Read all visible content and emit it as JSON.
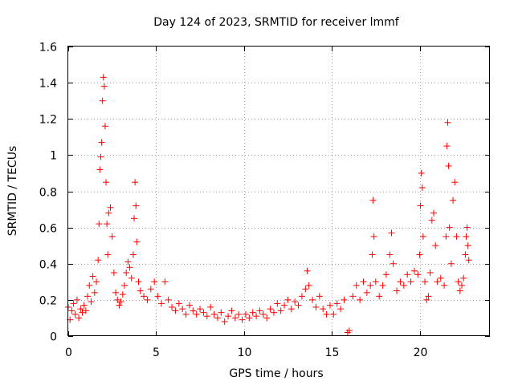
{
  "chart_data": {
    "type": "scatter",
    "title": "Day 124 of 2023, SRMTID for receiver lmmf",
    "xlabel": "GPS time / hours",
    "ylabel": "SRMTID / TECUs",
    "xlim": [
      0,
      24
    ],
    "ylim": [
      0,
      1.6
    ],
    "xticks": [
      0,
      5,
      10,
      15,
      20
    ],
    "xtick_labels": [
      "0",
      "5",
      "10",
      "15",
      "20"
    ],
    "yticks": [
      0,
      0.2,
      0.4,
      0.6,
      0.8,
      1,
      1.2,
      1.4,
      1.6
    ],
    "ytick_labels": [
      "0",
      "0.2",
      "0.4",
      "0.6",
      "0.8",
      "1",
      "1.2",
      "1.4",
      "1.6"
    ],
    "grid": true,
    "marker": "+",
    "series": [
      {
        "name": "SRMTID",
        "color": "#ff0000",
        "points": [
          [
            0.0,
            0.16
          ],
          [
            0.1,
            0.09
          ],
          [
            0.2,
            0.14
          ],
          [
            0.3,
            0.18
          ],
          [
            0.4,
            0.12
          ],
          [
            0.5,
            0.2
          ],
          [
            0.6,
            0.1
          ],
          [
            0.7,
            0.15
          ],
          [
            0.8,
            0.13
          ],
          [
            0.9,
            0.17
          ],
          [
            1.0,
            0.14
          ],
          [
            1.1,
            0.22
          ],
          [
            1.2,
            0.28
          ],
          [
            1.3,
            0.19
          ],
          [
            1.4,
            0.33
          ],
          [
            1.5,
            0.24
          ],
          [
            1.6,
            0.3
          ],
          [
            1.7,
            0.42
          ],
          [
            1.75,
            0.62
          ],
          [
            1.8,
            0.92
          ],
          [
            1.85,
            0.99
          ],
          [
            1.9,
            1.07
          ],
          [
            1.95,
            1.3
          ],
          [
            2.0,
            1.43
          ],
          [
            2.05,
            1.38
          ],
          [
            2.1,
            1.16
          ],
          [
            2.15,
            0.85
          ],
          [
            2.2,
            0.62
          ],
          [
            2.25,
            0.45
          ],
          [
            2.3,
            0.68
          ],
          [
            2.4,
            0.71
          ],
          [
            2.5,
            0.55
          ],
          [
            2.6,
            0.35
          ],
          [
            2.7,
            0.24
          ],
          [
            2.8,
            0.2
          ],
          [
            2.9,
            0.17
          ],
          [
            3.0,
            0.19
          ],
          [
            3.1,
            0.23
          ],
          [
            3.2,
            0.28
          ],
          [
            3.3,
            0.35
          ],
          [
            3.4,
            0.41
          ],
          [
            3.5,
            0.38
          ],
          [
            3.6,
            0.32
          ],
          [
            3.7,
            0.45
          ],
          [
            3.75,
            0.65
          ],
          [
            3.8,
            0.85
          ],
          [
            3.85,
            0.72
          ],
          [
            3.9,
            0.52
          ],
          [
            4.0,
            0.3
          ],
          [
            4.1,
            0.25
          ],
          [
            4.3,
            0.22
          ],
          [
            4.5,
            0.2
          ],
          [
            4.7,
            0.26
          ],
          [
            4.9,
            0.3
          ],
          [
            5.1,
            0.22
          ],
          [
            5.3,
            0.18
          ],
          [
            5.5,
            0.3
          ],
          [
            5.7,
            0.2
          ],
          [
            5.9,
            0.16
          ],
          [
            6.1,
            0.14
          ],
          [
            6.3,
            0.18
          ],
          [
            6.5,
            0.15
          ],
          [
            6.7,
            0.12
          ],
          [
            6.9,
            0.17
          ],
          [
            7.1,
            0.14
          ],
          [
            7.3,
            0.12
          ],
          [
            7.5,
            0.15
          ],
          [
            7.7,
            0.13
          ],
          [
            7.9,
            0.11
          ],
          [
            8.1,
            0.16
          ],
          [
            8.3,
            0.12
          ],
          [
            8.5,
            0.1
          ],
          [
            8.7,
            0.13
          ],
          [
            8.9,
            0.08
          ],
          [
            9.1,
            0.11
          ],
          [
            9.3,
            0.14
          ],
          [
            9.5,
            0.1
          ],
          [
            9.7,
            0.12
          ],
          [
            9.9,
            0.09
          ],
          [
            10.1,
            0.12
          ],
          [
            10.3,
            0.1
          ],
          [
            10.5,
            0.13
          ],
          [
            10.7,
            0.11
          ],
          [
            10.9,
            0.14
          ],
          [
            11.1,
            0.12
          ],
          [
            11.3,
            0.1
          ],
          [
            11.5,
            0.15
          ],
          [
            11.7,
            0.13
          ],
          [
            11.9,
            0.18
          ],
          [
            12.1,
            0.14
          ],
          [
            12.3,
            0.17
          ],
          [
            12.5,
            0.2
          ],
          [
            12.7,
            0.15
          ],
          [
            12.9,
            0.19
          ],
          [
            13.1,
            0.17
          ],
          [
            13.3,
            0.22
          ],
          [
            13.5,
            0.26
          ],
          [
            13.6,
            0.36
          ],
          [
            13.7,
            0.28
          ],
          [
            13.9,
            0.2
          ],
          [
            14.1,
            0.16
          ],
          [
            14.3,
            0.22
          ],
          [
            14.5,
            0.15
          ],
          [
            14.7,
            0.12
          ],
          [
            14.9,
            0.17
          ],
          [
            15.1,
            0.12
          ],
          [
            15.3,
            0.18
          ],
          [
            15.5,
            0.15
          ],
          [
            15.7,
            0.2
          ],
          [
            15.9,
            0.02
          ],
          [
            16.0,
            0.03
          ],
          [
            16.2,
            0.22
          ],
          [
            16.4,
            0.28
          ],
          [
            16.6,
            0.2
          ],
          [
            16.8,
            0.3
          ],
          [
            17.0,
            0.24
          ],
          [
            17.2,
            0.28
          ],
          [
            17.3,
            0.45
          ],
          [
            17.35,
            0.75
          ],
          [
            17.4,
            0.55
          ],
          [
            17.5,
            0.3
          ],
          [
            17.7,
            0.22
          ],
          [
            17.9,
            0.28
          ],
          [
            18.1,
            0.34
          ],
          [
            18.3,
            0.45
          ],
          [
            18.4,
            0.57
          ],
          [
            18.5,
            0.4
          ],
          [
            18.7,
            0.25
          ],
          [
            18.9,
            0.3
          ],
          [
            19.1,
            0.28
          ],
          [
            19.3,
            0.34
          ],
          [
            19.5,
            0.3
          ],
          [
            19.7,
            0.36
          ],
          [
            19.9,
            0.34
          ],
          [
            20.0,
            0.45
          ],
          [
            20.05,
            0.72
          ],
          [
            20.1,
            0.9
          ],
          [
            20.15,
            0.82
          ],
          [
            20.2,
            0.55
          ],
          [
            20.3,
            0.3
          ],
          [
            20.4,
            0.2
          ],
          [
            20.5,
            0.22
          ],
          [
            20.6,
            0.35
          ],
          [
            20.7,
            0.64
          ],
          [
            20.8,
            0.68
          ],
          [
            20.9,
            0.5
          ],
          [
            21.0,
            0.3
          ],
          [
            21.2,
            0.32
          ],
          [
            21.4,
            0.28
          ],
          [
            21.5,
            0.55
          ],
          [
            21.55,
            1.05
          ],
          [
            21.6,
            1.18
          ],
          [
            21.65,
            0.94
          ],
          [
            21.7,
            0.6
          ],
          [
            21.8,
            0.4
          ],
          [
            21.9,
            0.75
          ],
          [
            22.0,
            0.85
          ],
          [
            22.1,
            0.55
          ],
          [
            22.2,
            0.3
          ],
          [
            22.3,
            0.25
          ],
          [
            22.4,
            0.28
          ],
          [
            22.5,
            0.32
          ],
          [
            22.6,
            0.45
          ],
          [
            22.65,
            0.55
          ],
          [
            22.7,
            0.6
          ],
          [
            22.75,
            0.5
          ],
          [
            22.8,
            0.42
          ]
        ]
      }
    ]
  }
}
